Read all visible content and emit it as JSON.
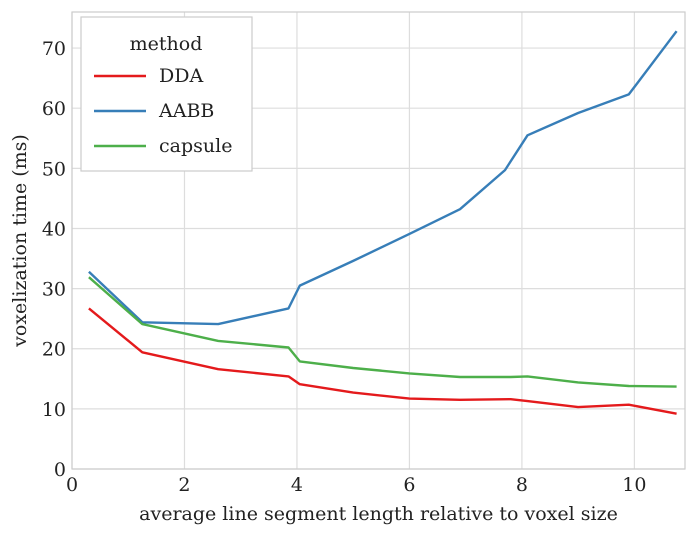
{
  "chart_data": {
    "type": "line",
    "title": "",
    "xlabel": "average line segment length relative to voxel size",
    "ylabel": "voxelization time (ms)",
    "xlim": [
      0,
      10.9
    ],
    "ylim": [
      0,
      76
    ],
    "xticks": [
      0,
      2,
      4,
      6,
      8,
      10
    ],
    "yticks": [
      0,
      10,
      20,
      30,
      40,
      50,
      60,
      70
    ],
    "grid": true,
    "legend": {
      "title": "method",
      "placement": "top-left"
    },
    "series": [
      {
        "name": "DDA",
        "color": "#e41a1c",
        "x": [
          0.3,
          1.25,
          2.6,
          3.85,
          4.05,
          5.0,
          6.0,
          6.9,
          7.8,
          8.1,
          9.0,
          9.9,
          10.75
        ],
        "y": [
          26.7,
          19.4,
          16.6,
          15.4,
          14.1,
          12.7,
          11.7,
          11.5,
          11.6,
          11.3,
          10.3,
          10.7,
          9.2
        ]
      },
      {
        "name": "AABB",
        "color": "#377eb8",
        "x": [
          0.3,
          1.25,
          2.6,
          3.85,
          4.05,
          5.0,
          6.0,
          6.9,
          7.7,
          8.1,
          9.0,
          9.9,
          10.75
        ],
        "y": [
          32.8,
          24.4,
          24.1,
          26.7,
          30.5,
          34.6,
          39.1,
          43.2,
          49.7,
          55.5,
          59.2,
          62.3,
          72.8
        ]
      },
      {
        "name": "capsule",
        "color": "#4daf4a",
        "x": [
          0.3,
          1.25,
          2.6,
          3.85,
          4.05,
          5.0,
          6.0,
          6.9,
          7.8,
          8.1,
          9.0,
          9.9,
          10.75
        ],
        "y": [
          31.9,
          24.1,
          21.3,
          20.2,
          17.9,
          16.8,
          15.9,
          15.3,
          15.3,
          15.4,
          14.4,
          13.8,
          13.7
        ]
      }
    ]
  }
}
